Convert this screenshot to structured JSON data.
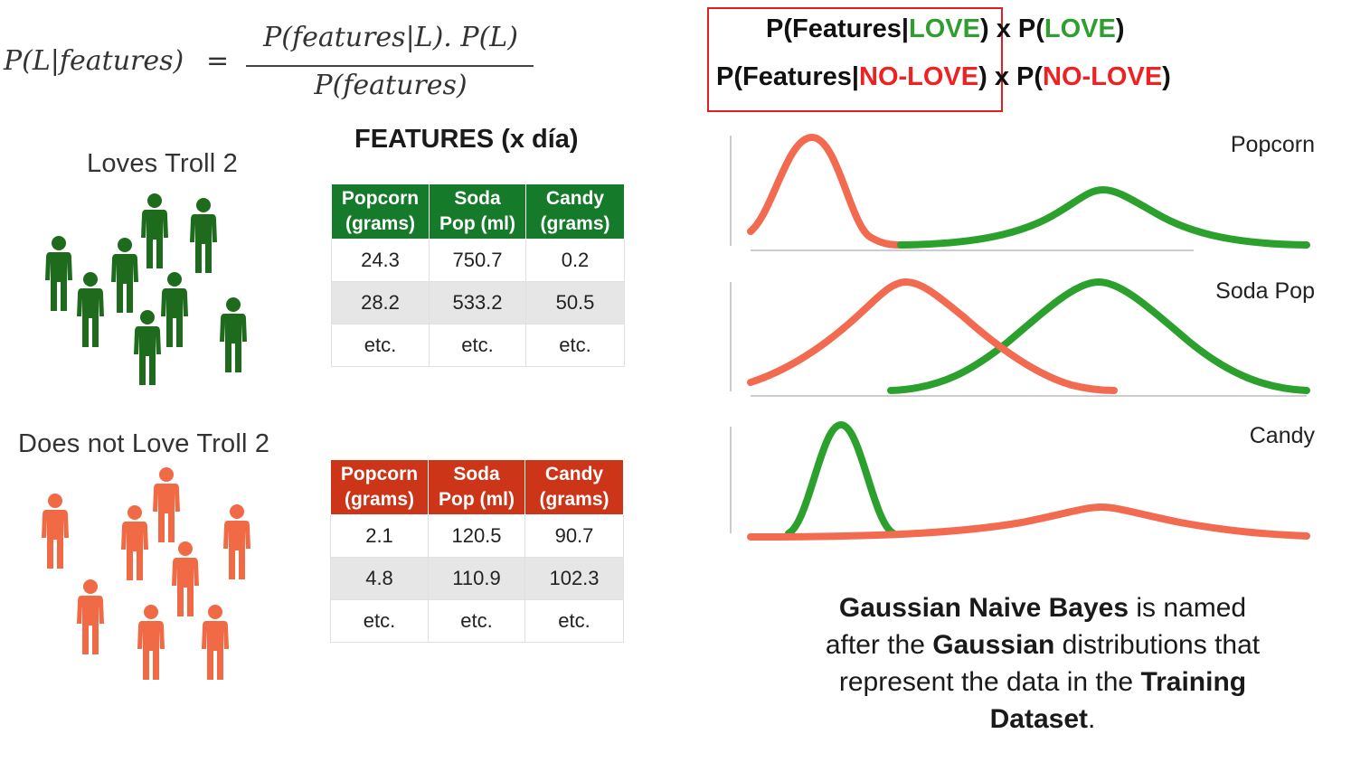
{
  "formula": {
    "lhs": "P(L|features)",
    "equals": "=",
    "numerator": "P(features|L). P(L)",
    "denominator": "P(features)"
  },
  "groups": {
    "love_title": "Loves Troll 2",
    "nolove_title": "Does not Love Troll 2",
    "love_color": "#1e6b1e",
    "nolove_color": "#f06a45"
  },
  "features_header": "FEATURES (x día)",
  "table_love": {
    "headers": [
      [
        "Popcorn",
        "(grams)"
      ],
      [
        "Soda",
        "Pop (ml)"
      ],
      [
        "Candy",
        "(grams)"
      ]
    ],
    "rows": [
      [
        "24.3",
        "750.7",
        "0.2"
      ],
      [
        "28.2",
        "533.2",
        "50.5"
      ],
      [
        "etc.",
        "etc.",
        "etc."
      ]
    ]
  },
  "table_nolove": {
    "headers": [
      [
        "Popcorn",
        "(grams)"
      ],
      [
        "Soda",
        "Pop (ml)"
      ],
      [
        "Candy",
        "(grams)"
      ]
    ],
    "rows": [
      [
        "2.1",
        "120.5",
        "90.7"
      ],
      [
        "4.8",
        "110.9",
        "102.3"
      ],
      [
        "etc.",
        "etc.",
        "etc."
      ]
    ]
  },
  "posterior": {
    "line1": {
      "p_open": "P(Features|",
      "class": "LOVE",
      "p_close": ")",
      "times": "x P(",
      "prior": "LOVE",
      "end": ")"
    },
    "line2": {
      "p_open": "P(Features|",
      "class": "NO-LOVE",
      "p_close": ")",
      "times": "x P(",
      "prior": "NO-LOVE",
      "end": ")"
    }
  },
  "plots": {
    "popcorn_label": "Popcorn",
    "soda_label": "Soda Pop",
    "candy_label": "Candy"
  },
  "caption": {
    "b1": "Gaussian Naive Bayes",
    "t1": " is named after the ",
    "b2": "Gaussian",
    "t2": " distributions that represent the data in the ",
    "b3": "Training Dataset",
    "t3": "."
  },
  "colors": {
    "love_curve": "#2ca02c",
    "nolove_curve": "#f26a4f",
    "axis": "#cccccc"
  },
  "icons": [
    "person-icon"
  ]
}
